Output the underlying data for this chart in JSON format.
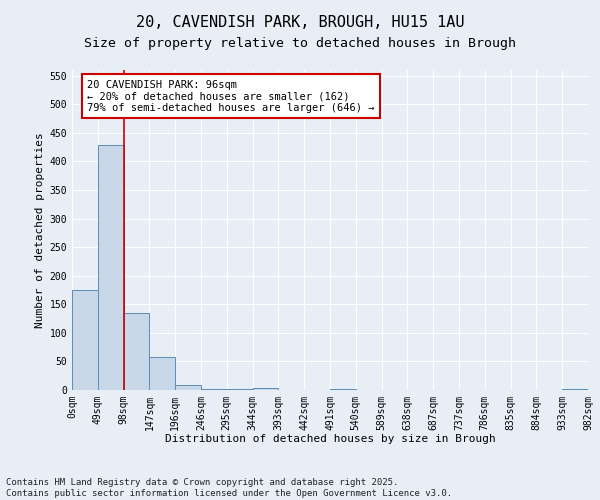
{
  "title_line1": "20, CAVENDISH PARK, BROUGH, HU15 1AU",
  "title_line2": "Size of property relative to detached houses in Brough",
  "xlabel": "Distribution of detached houses by size in Brough",
  "ylabel": "Number of detached properties",
  "bar_values": [
    175,
    428,
    135,
    58,
    8,
    2,
    2,
    4,
    0,
    0,
    2,
    0,
    0,
    0,
    0,
    0,
    0,
    0,
    0,
    2
  ],
  "bin_labels": [
    "0sqm",
    "49sqm",
    "98sqm",
    "147sqm",
    "196sqm",
    "246sqm",
    "295sqm",
    "344sqm",
    "393sqm",
    "442sqm",
    "491sqm",
    "540sqm",
    "589sqm",
    "638sqm",
    "687sqm",
    "737sqm",
    "786sqm",
    "835sqm",
    "884sqm",
    "933sqm",
    "982sqm"
  ],
  "bar_color": "#c8d8e8",
  "bar_edge_color": "#5b8db8",
  "background_color": "#e8eef6",
  "fig_background_color": "#e8eef6",
  "grid_color": "#ffffff",
  "annotation_box_color": "#cc0000",
  "vline_color": "#cc0000",
  "vline_x": 2,
  "annotation_text": "20 CAVENDISH PARK: 96sqm\n← 20% of detached houses are smaller (162)\n79% of semi-detached houses are larger (646) →",
  "ylim": [
    0,
    560
  ],
  "yticks": [
    0,
    50,
    100,
    150,
    200,
    250,
    300,
    350,
    400,
    450,
    500,
    550
  ],
  "footer_text": "Contains HM Land Registry data © Crown copyright and database right 2025.\nContains public sector information licensed under the Open Government Licence v3.0.",
  "title_fontsize": 11,
  "subtitle_fontsize": 9.5,
  "axis_label_fontsize": 8,
  "tick_fontsize": 7,
  "annotation_fontsize": 7.5,
  "footer_fontsize": 6.5
}
